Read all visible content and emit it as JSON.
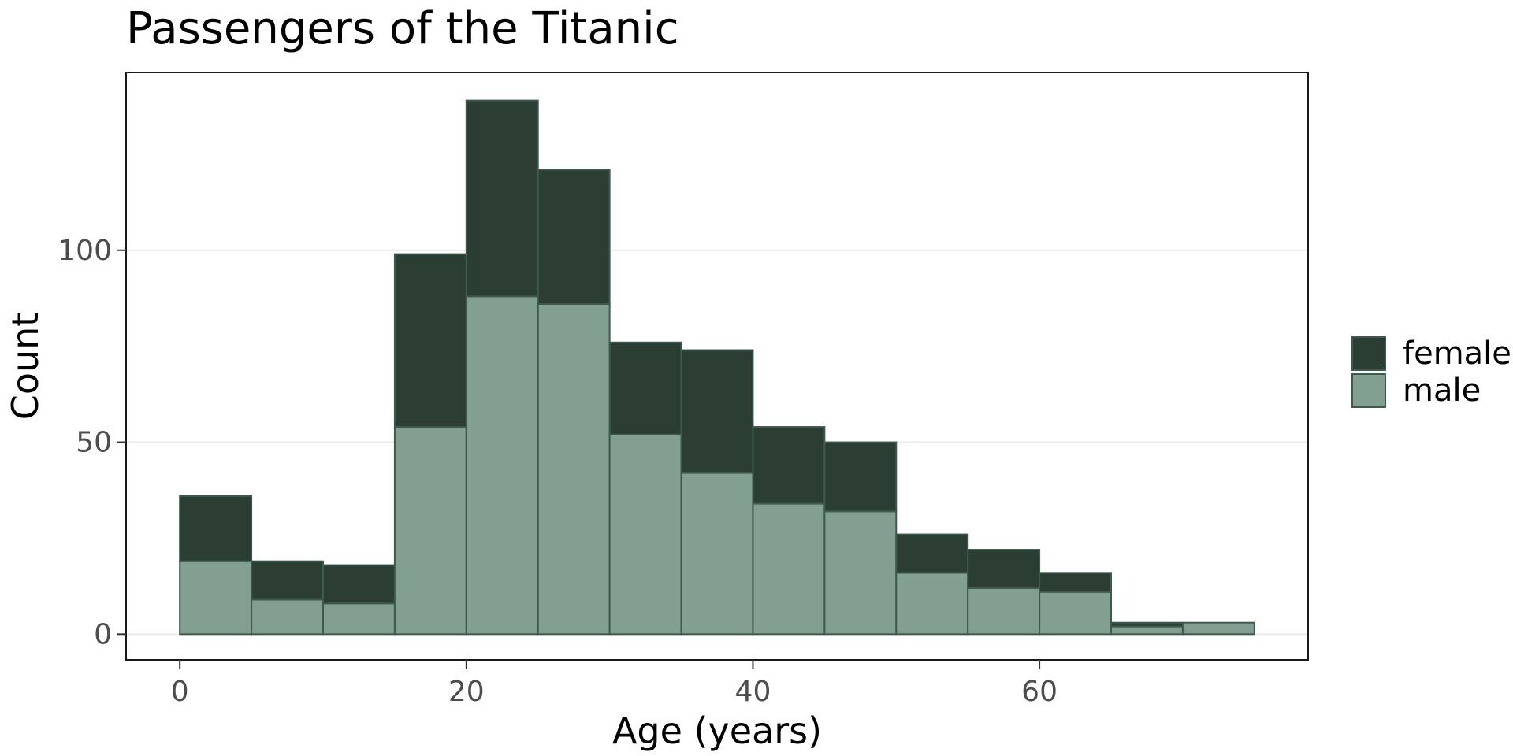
{
  "chart_data": {
    "type": "bar",
    "stacked": true,
    "histogram": true,
    "title": "Passengers of the Titanic",
    "xlabel": "Age (years)",
    "ylabel": "Count",
    "xlim": [
      -3.75,
      78.75
    ],
    "ylim": [
      -6.7,
      146.3
    ],
    "x_ticks": [
      0,
      20,
      40,
      60
    ],
    "y_ticks": [
      0,
      50,
      100
    ],
    "bin_width": 5,
    "bin_starts": [
      0,
      5,
      10,
      15,
      20,
      25,
      30,
      35,
      40,
      45,
      50,
      55,
      60,
      65,
      70
    ],
    "series": [
      {
        "name": "male",
        "color": "#829f91",
        "values": [
          19,
          9,
          8,
          54,
          88,
          86,
          52,
          42,
          34,
          32,
          16,
          12,
          11,
          2,
          3
        ]
      },
      {
        "name": "female",
        "color": "#2c3d34",
        "values": [
          17,
          10,
          10,
          45,
          51,
          35,
          24,
          32,
          20,
          18,
          10,
          10,
          5,
          1,
          0
        ]
      }
    ],
    "legend": {
      "position": "right",
      "entries": [
        "female",
        "male"
      ]
    },
    "grid": "horizontal-major",
    "bar_edge_color": "#3d5a4e"
  }
}
